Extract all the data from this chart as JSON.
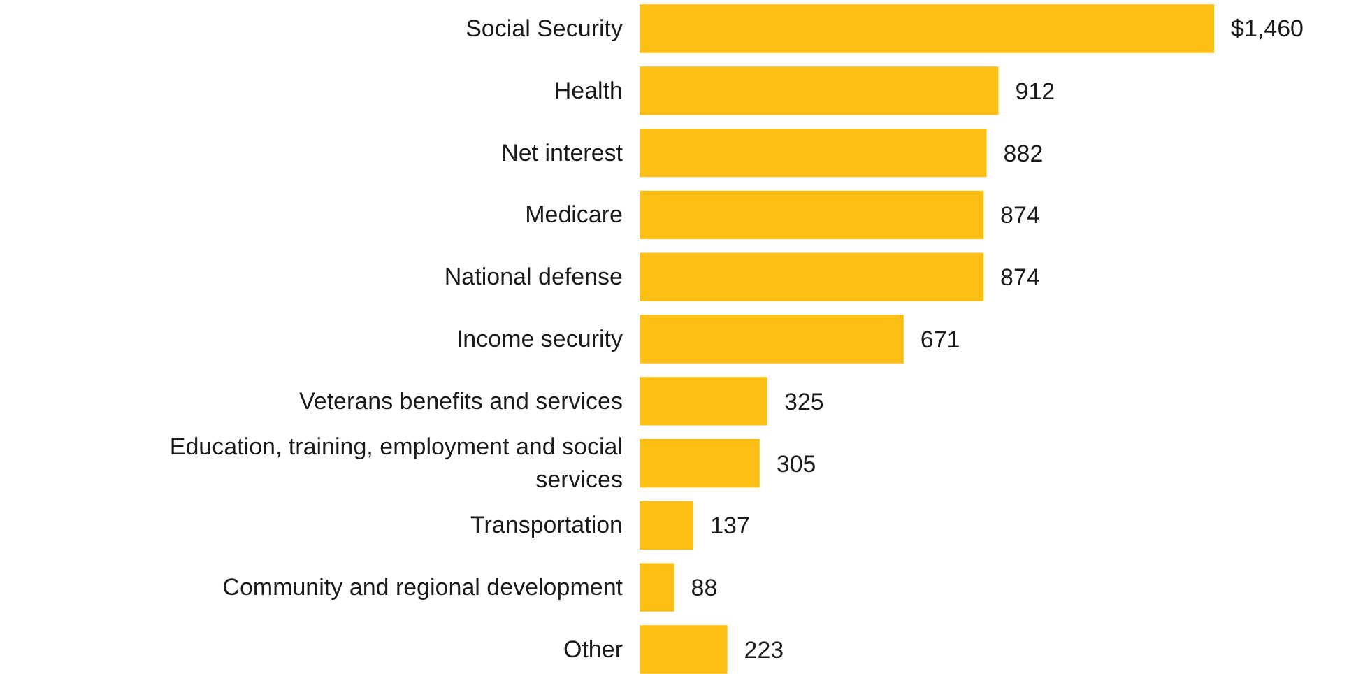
{
  "chart_data": {
    "type": "bar",
    "orientation": "horizontal",
    "categories": [
      "Social Security",
      "Health",
      "Net interest",
      "Medicare",
      "National defense",
      "Income security",
      "Veterans benefits and services",
      "Education, training, employment and social services",
      "Transportation",
      "Community and regional development",
      "Other"
    ],
    "values": [
      1460,
      912,
      882,
      874,
      874,
      671,
      325,
      305,
      137,
      88,
      223
    ],
    "value_labels": [
      "$1,460",
      "912",
      "882",
      "874",
      "874",
      "671",
      "325",
      "305",
      "137",
      "88",
      "223"
    ],
    "color": "#fcbe14"
  }
}
